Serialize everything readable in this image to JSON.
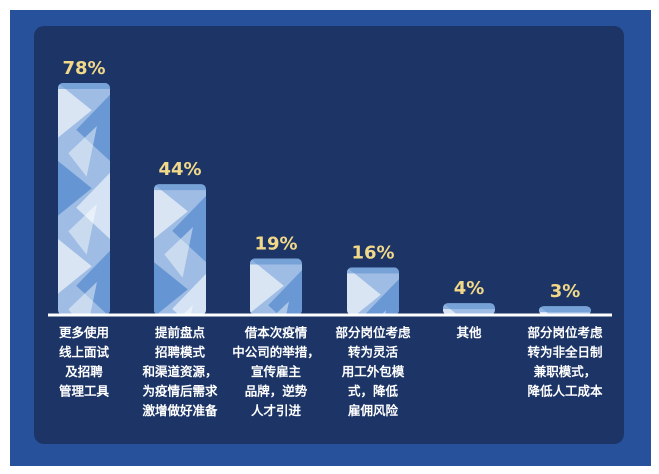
{
  "chart_data": {
    "type": "bar",
    "title": "",
    "xlabel": "",
    "ylabel": "",
    "ylim": [
      0,
      80
    ],
    "grid": false,
    "legend": "none",
    "categories": [
      "更多使用线上面试及招聘管理工具",
      "提前盘点招聘模式和渠道资源，为疫情后需求激增做好准备",
      "借本次疫情中公司的举措，宣传雇主品牌，逆势人才引进",
      "部分岗位考虑转为灵活用工外包模式，降低雇佣风险",
      "其他",
      "部分岗位考虑转为非全日制兼职模式，降低人工成本"
    ],
    "category_lines": [
      [
        "更多使用",
        "线上面试",
        "及招聘",
        "管理工具"
      ],
      [
        "提前盘点",
        "招聘模式",
        "和渠道资源，",
        "为疫情后需求",
        "激增做好准备"
      ],
      [
        "借本次疫情",
        "中公司的举措，",
        "宣传雇主",
        "品牌，逆势",
        "人才引进"
      ],
      [
        "部分岗位考虑",
        "转为灵活",
        "用工外包模",
        "式，降低",
        "雇佣风险"
      ],
      [
        "其他"
      ],
      [
        "部分岗位考虑",
        "转为非全日制",
        "兼职模式，",
        "降低人工成本"
      ]
    ],
    "values": [
      78,
      44,
      19,
      16,
      4,
      3
    ],
    "value_labels": [
      "78%",
      "44%",
      "19%",
      "16%",
      "4%",
      "3%"
    ],
    "colors": {
      "frame": "#27519b",
      "panel": "#1c3566",
      "bar_light": "#e4ecf7",
      "bar_mid": "#9fbde4",
      "bar_dark": "#5b8fd0",
      "value_text": "#f2d98a",
      "category_text": "#ffffff",
      "baseline": "#ffffff"
    }
  }
}
